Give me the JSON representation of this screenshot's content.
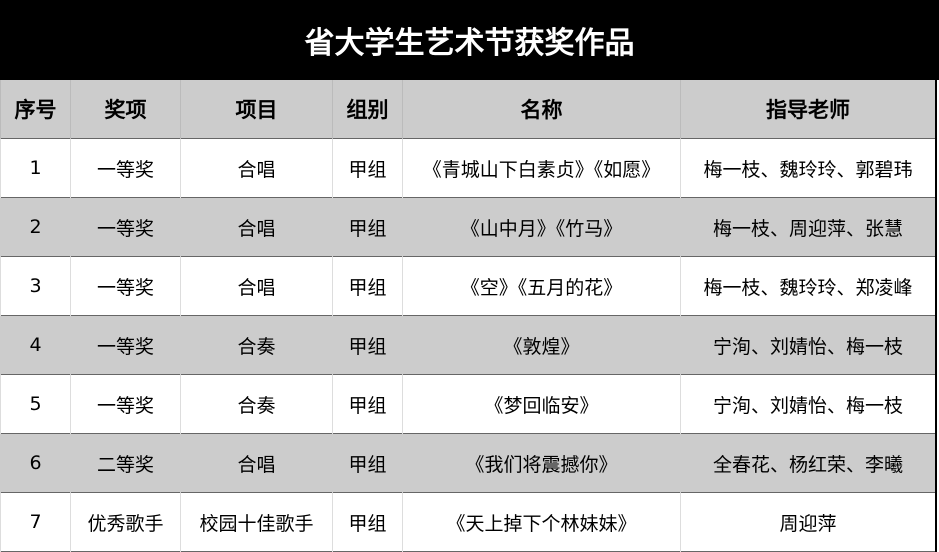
{
  "title": "省大学生艺术节获奖作品",
  "headers": [
    "序号",
    "奖项",
    "项目",
    "组别",
    "名称",
    "指导老师"
  ],
  "rows": [
    [
      "1",
      "一等奖",
      "合唱",
      "甲组",
      "《青城山下白素贞》《如愿》",
      "梅一枝、魏玲玲、郭碧玮"
    ],
    [
      "2",
      "一等奖",
      "合唱",
      "甲组",
      "《山中月》《竹马》",
      "梅一枝、周迎萍、张慧"
    ],
    [
      "3",
      "一等奖",
      "合唱",
      "甲组",
      "《空》《五月的花》",
      "梅一枝、魏玲玲、郑凌峰"
    ],
    [
      "4",
      "一等奖",
      "合奏",
      "甲组",
      "《敦煌》",
      "宁洵、刘婧怡、梅一枝"
    ],
    [
      "5",
      "一等奖",
      "合奏",
      "甲组",
      "《梦回临安》",
      "宁洵、刘婧怡、梅一枝"
    ],
    [
      "6",
      "二等奖",
      "合唱",
      "甲组",
      "《我们将震撼你》",
      "全春花、杨红荣、李曦"
    ],
    [
      "7",
      "优秀歌手",
      "校园十佳歌手",
      "甲组",
      "《天上掉下个林妹妹》",
      "周迎萍"
    ]
  ]
}
